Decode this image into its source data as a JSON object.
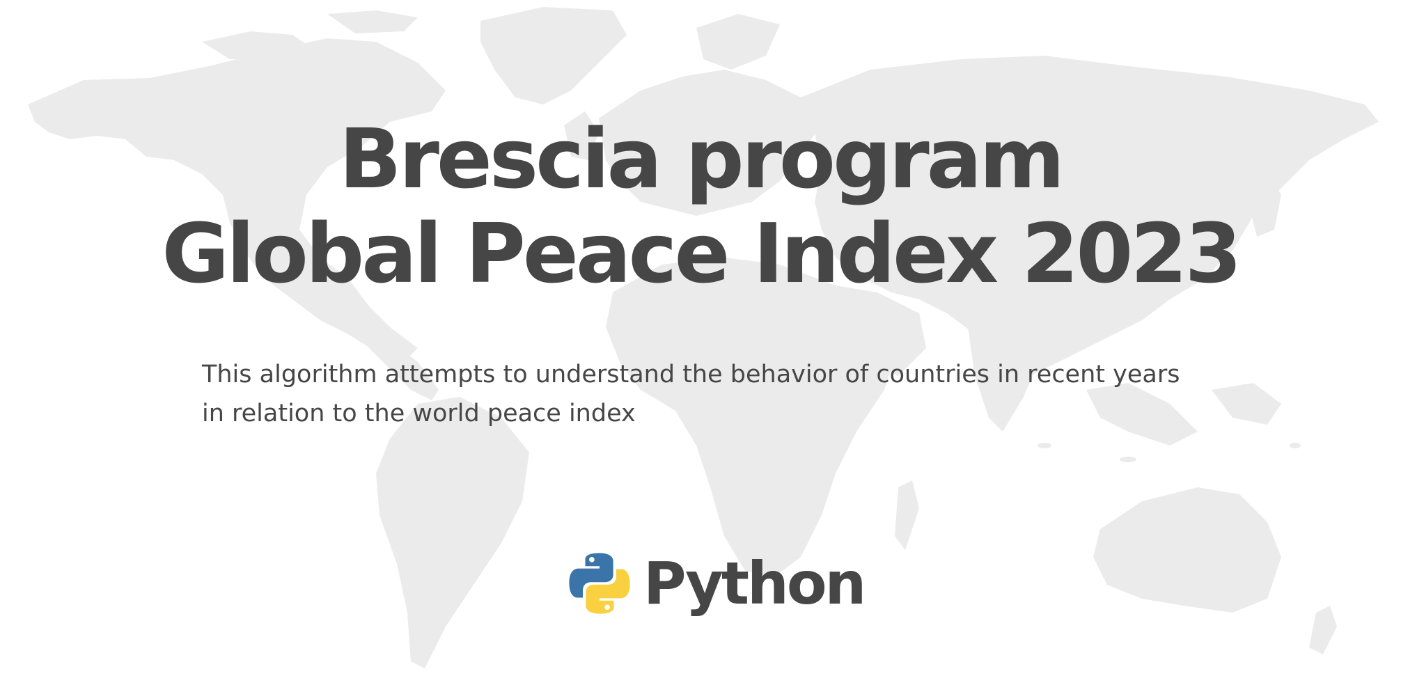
{
  "title": {
    "line1": "Brescia program",
    "line2": "Global Peace Index 2023"
  },
  "subtitle": {
    "line1": "This algorithm attempts to understand the behavior of countries in recent years",
    "line2": "in relation to the world peace index"
  },
  "logo": {
    "text": "Python",
    "icon": "python-logo-icon"
  },
  "background": {
    "image": "world-map",
    "map_color": "#ebebeb"
  },
  "colors": {
    "text": "#464646",
    "python_blue": "#3a74a8",
    "python_yellow": "#f9d140"
  }
}
